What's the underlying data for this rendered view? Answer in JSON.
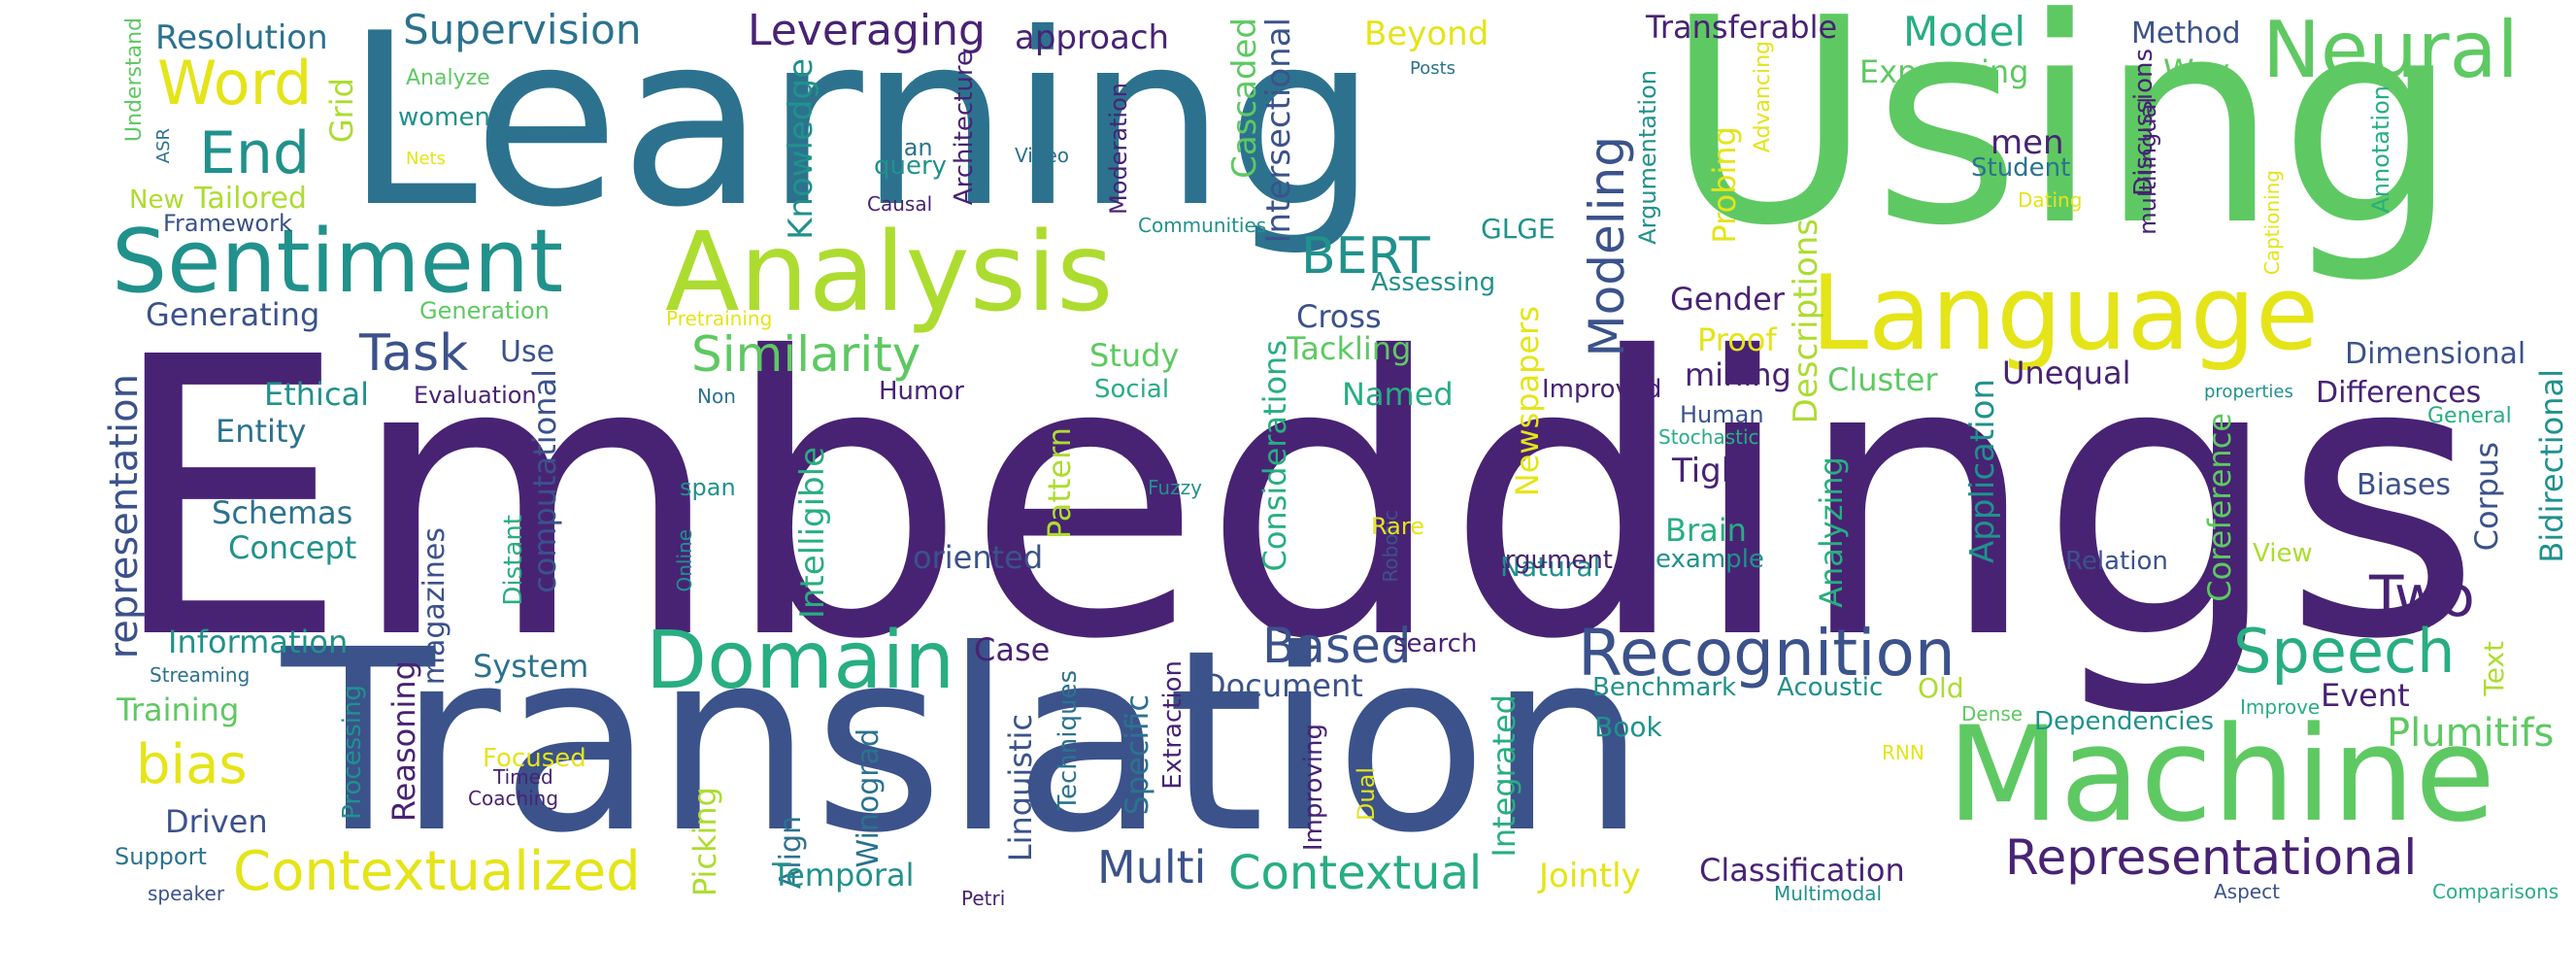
{
  "palette": {
    "dark_purple": "#482374",
    "blue": "#3b528b",
    "teal": "#2c728e",
    "green_teal": "#21918c",
    "sea_green": "#28ae80",
    "green": "#5ec962",
    "lime": "#addc30",
    "yellow": "#e5e419",
    "background": "#ffffff"
  },
  "words": [
    {
      "id": "w0",
      "text": "Embeddings",
      "color": "#482374"
    },
    {
      "id": "w1",
      "text": "Learning",
      "color": "#2c728e"
    },
    {
      "id": "w2",
      "text": "Using",
      "color": "#5ec962"
    },
    {
      "id": "w3",
      "text": "Translation",
      "color": "#3b528b"
    },
    {
      "id": "w4",
      "text": "Machine",
      "color": "#5ec962"
    },
    {
      "id": "w5",
      "text": "Analysis",
      "color": "#addc30"
    },
    {
      "id": "w6",
      "text": "Language",
      "color": "#e5e419"
    },
    {
      "id": "w7",
      "text": "Sentiment",
      "color": "#21918c"
    },
    {
      "id": "w8",
      "text": "Neural",
      "color": "#5ec962"
    },
    {
      "id": "w9",
      "text": "Domain",
      "color": "#28ae80"
    },
    {
      "id": "w10",
      "text": "Recognition",
      "color": "#3b528b"
    },
    {
      "id": "w11",
      "text": "Representational",
      "color": "#482374"
    },
    {
      "id": "w12",
      "text": "Speech",
      "color": "#28ae80"
    },
    {
      "id": "w13",
      "text": "Contextualized",
      "color": "#e5e419"
    },
    {
      "id": "w14",
      "text": "Contextual",
      "color": "#28ae80"
    },
    {
      "id": "w15",
      "text": "Word",
      "color": "#e5e419"
    },
    {
      "id": "w16",
      "text": "End",
      "color": "#21918c"
    },
    {
      "id": "w17",
      "text": "Similarity",
      "color": "#5ec962"
    },
    {
      "id": "w18",
      "text": "Based",
      "color": "#3b528b"
    },
    {
      "id": "w19",
      "text": "BERT",
      "color": "#21918c"
    },
    {
      "id": "w20",
      "text": "Two",
      "color": "#482374"
    },
    {
      "id": "w21",
      "text": "bias",
      "color": "#e5e419"
    },
    {
      "id": "w22",
      "text": "Task",
      "color": "#3b528b"
    },
    {
      "id": "w23",
      "text": "Multi",
      "color": "#3b528b"
    },
    {
      "id": "w24",
      "text": "Supervision",
      "color": "#2c728e"
    },
    {
      "id": "w25",
      "text": "Leveraging",
      "color": "#482374"
    },
    {
      "id": "w26",
      "text": "Model",
      "color": "#28ae80"
    },
    {
      "id": "w27",
      "text": "Plumitifs",
      "color": "#5ec962"
    },
    {
      "id": "w28",
      "text": "Modeling",
      "color": "#3b528b"
    },
    {
      "id": "w29",
      "text": "representation",
      "color": "#3b528b"
    },
    {
      "id": "w30",
      "text": "Resolution",
      "color": "#2c728e"
    },
    {
      "id": "w31",
      "text": "Beyond",
      "color": "#e5e419"
    },
    {
      "id": "w32",
      "text": "Transferable",
      "color": "#482374"
    },
    {
      "id": "w33",
      "text": "Method",
      "color": "#3b528b"
    },
    {
      "id": "w34",
      "text": "approach",
      "color": "#482374"
    },
    {
      "id": "w35",
      "text": "Expressing",
      "color": "#5ec962"
    },
    {
      "id": "w36",
      "text": "Way",
      "color": "#5ec962"
    },
    {
      "id": "w37",
      "text": "Grid",
      "color": "#addc30"
    },
    {
      "id": "w38",
      "text": "Analyze",
      "color": "#5ec962"
    },
    {
      "id": "w39",
      "text": "women",
      "color": "#21918c"
    },
    {
      "id": "w40",
      "text": "Nets",
      "color": "#e5e419"
    },
    {
      "id": "w41",
      "text": "Understand",
      "color": "#5ec962"
    },
    {
      "id": "w42",
      "text": "ASR",
      "color": "#2c728e"
    },
    {
      "id": "w43",
      "text": "New",
      "color": "#addc30"
    },
    {
      "id": "w44",
      "text": "Tailored",
      "color": "#addc30"
    },
    {
      "id": "w45",
      "text": "Framework",
      "color": "#3b528b"
    },
    {
      "id": "w46",
      "text": "Generating",
      "color": "#3b528b"
    },
    {
      "id": "w47",
      "text": "Generation",
      "color": "#5ec962"
    },
    {
      "id": "w48",
      "text": "Pretraining",
      "color": "#e5e419"
    },
    {
      "id": "w49",
      "text": "Knowledge",
      "color": "#21918c"
    },
    {
      "id": "w50",
      "text": "Architecture",
      "color": "#482374"
    },
    {
      "id": "w51",
      "text": "query",
      "color": "#21918c"
    },
    {
      "id": "w52",
      "text": "Man",
      "color": "#2c728e"
    },
    {
      "id": "w53",
      "text": "Causal",
      "color": "#482374"
    },
    {
      "id": "w54",
      "text": "Video",
      "color": "#2c728e"
    },
    {
      "id": "w55",
      "text": "Moderation",
      "color": "#482374"
    },
    {
      "id": "w56",
      "text": "Cascaded",
      "color": "#5ec962"
    },
    {
      "id": "w57",
      "text": "Intersectional",
      "color": "#3b528b"
    },
    {
      "id": "w58",
      "text": "Communities",
      "color": "#21918c"
    },
    {
      "id": "w59",
      "text": "GLGE",
      "color": "#21918c"
    },
    {
      "id": "w60",
      "text": "Posts",
      "color": "#2c728e"
    },
    {
      "id": "w61",
      "text": "Argumentation",
      "color": "#21918c"
    },
    {
      "id": "w62",
      "text": "Probing",
      "color": "#e5e419"
    },
    {
      "id": "w63",
      "text": "Advancing",
      "color": "#e5e419"
    },
    {
      "id": "w64",
      "text": "men",
      "color": "#482374"
    },
    {
      "id": "w65",
      "text": "Student",
      "color": "#2c728e"
    },
    {
      "id": "w66",
      "text": "Dating",
      "color": "#e5e419"
    },
    {
      "id": "w67",
      "text": "Discussions",
      "color": "#482374"
    },
    {
      "id": "w68",
      "text": "multilingual",
      "color": "#482374"
    },
    {
      "id": "w69",
      "text": "Captioning",
      "color": "#e5e419"
    },
    {
      "id": "w70",
      "text": "Annotation",
      "color": "#28ae80"
    },
    {
      "id": "w71",
      "text": "Descriptions",
      "color": "#addc30"
    },
    {
      "id": "w72",
      "text": "Gender",
      "color": "#482374"
    },
    {
      "id": "w73",
      "text": "Proof",
      "color": "#e5e419"
    },
    {
      "id": "w74",
      "text": "mining",
      "color": "#482374"
    },
    {
      "id": "w75",
      "text": "Cluster",
      "color": "#5ec962"
    },
    {
      "id": "w76",
      "text": "Unequal",
      "color": "#482374"
    },
    {
      "id": "w77",
      "text": "Dimensional",
      "color": "#3b528b"
    },
    {
      "id": "w78",
      "text": "Differences",
      "color": "#482374"
    },
    {
      "id": "w79",
      "text": "General",
      "color": "#28ae80"
    },
    {
      "id": "w80",
      "text": "Bidirectional",
      "color": "#21918c"
    },
    {
      "id": "w81",
      "text": "properties",
      "color": "#21918c"
    },
    {
      "id": "w82",
      "text": "Use",
      "color": "#3b528b"
    },
    {
      "id": "w83",
      "text": "Study",
      "color": "#5ec962"
    },
    {
      "id": "w84",
      "text": "Cross",
      "color": "#3b528b"
    },
    {
      "id": "w85",
      "text": "Tackling",
      "color": "#5ec962"
    },
    {
      "id": "w86",
      "text": "Assessing",
      "color": "#21918c"
    },
    {
      "id": "w87",
      "text": "Named",
      "color": "#28ae80"
    },
    {
      "id": "w88",
      "text": "Social",
      "color": "#28ae80"
    },
    {
      "id": "w89",
      "text": "Pattern",
      "color": "#addc30"
    },
    {
      "id": "w90",
      "text": "Humor",
      "color": "#482374"
    },
    {
      "id": "w91",
      "text": "Non",
      "color": "#2c728e"
    },
    {
      "id": "w92",
      "text": "Evaluation",
      "color": "#482374"
    },
    {
      "id": "w93",
      "text": "Ethical",
      "color": "#21918c"
    },
    {
      "id": "w94",
      "text": "Entity",
      "color": "#2c728e"
    },
    {
      "id": "w95",
      "text": "Schemas",
      "color": "#2c728e"
    },
    {
      "id": "w96",
      "text": "Concept",
      "color": "#21918c"
    },
    {
      "id": "w97",
      "text": "Information",
      "color": "#21918c"
    },
    {
      "id": "w98",
      "text": "Streaming",
      "color": "#2c728e"
    },
    {
      "id": "w99",
      "text": "Training",
      "color": "#5ec962"
    },
    {
      "id": "w100",
      "text": "Driven",
      "color": "#3b528b"
    },
    {
      "id": "w101",
      "text": "Support",
      "color": "#2c728e"
    },
    {
      "id": "w102",
      "text": "speaker",
      "color": "#3b528b"
    },
    {
      "id": "w103",
      "text": "magazines",
      "color": "#3b528b"
    },
    {
      "id": "w104",
      "text": "computational",
      "color": "#3b528b"
    },
    {
      "id": "w105",
      "text": "System",
      "color": "#2c728e"
    },
    {
      "id": "w106",
      "text": "Distant",
      "color": "#28ae80"
    },
    {
      "id": "w107",
      "text": "span",
      "color": "#21918c"
    },
    {
      "id": "w108",
      "text": "Online",
      "color": "#21918c"
    },
    {
      "id": "w109",
      "text": "Fuzzy",
      "color": "#21918c"
    },
    {
      "id": "w110",
      "text": "Intelligible",
      "color": "#28ae80"
    },
    {
      "id": "w111",
      "text": "oriented",
      "color": "#3b528b"
    },
    {
      "id": "w112",
      "text": "Robotic",
      "color": "#3b528b"
    },
    {
      "id": "w113",
      "text": "Rare",
      "color": "#e5e419"
    },
    {
      "id": "w114",
      "text": "Considerations",
      "color": "#28ae80"
    },
    {
      "id": "w115",
      "text": "Newspapers",
      "color": "#e5e419"
    },
    {
      "id": "w116",
      "text": "Improved",
      "color": "#482374"
    },
    {
      "id": "w117",
      "text": "Natural",
      "color": "#21918c"
    },
    {
      "id": "w118",
      "text": "Argument",
      "color": "#482374"
    },
    {
      "id": "w119",
      "text": "Human",
      "color": "#3b528b"
    },
    {
      "id": "w120",
      "text": "Stochastic",
      "color": "#28ae80"
    },
    {
      "id": "w121",
      "text": "Tight",
      "color": "#482374"
    },
    {
      "id": "w122",
      "text": "Brain",
      "color": "#28ae80"
    },
    {
      "id": "w123",
      "text": "example",
      "color": "#21918c"
    },
    {
      "id": "w124",
      "text": "Analyzing",
      "color": "#28ae80"
    },
    {
      "id": "w125",
      "text": "Application",
      "color": "#21918c"
    },
    {
      "id": "w126",
      "text": "Coreference",
      "color": "#5ec962"
    },
    {
      "id": "w127",
      "text": "Corpus",
      "color": "#3b528b"
    },
    {
      "id": "w128",
      "text": "Biases",
      "color": "#3b528b"
    },
    {
      "id": "w129",
      "text": "Event",
      "color": "#482374"
    },
    {
      "id": "w130",
      "text": "View",
      "color": "#addc30"
    },
    {
      "id": "w131",
      "text": "Relation",
      "color": "#3b528b"
    },
    {
      "id": "w132",
      "text": "Text",
      "color": "#addc30"
    },
    {
      "id": "w133",
      "text": "Improve",
      "color": "#28ae80"
    },
    {
      "id": "w134",
      "text": "Case",
      "color": "#482374"
    },
    {
      "id": "w135",
      "text": "Reasoning",
      "color": "#482374"
    },
    {
      "id": "w136",
      "text": "Processing",
      "color": "#21918c"
    },
    {
      "id": "w137",
      "text": "Focused",
      "color": "#e5e419"
    },
    {
      "id": "w138",
      "text": "Timed",
      "color": "#482374"
    },
    {
      "id": "w139",
      "text": "Coaching",
      "color": "#482374"
    },
    {
      "id": "w140",
      "text": "Winograd",
      "color": "#2c728e"
    },
    {
      "id": "w141",
      "text": "Align",
      "color": "#2c728e"
    },
    {
      "id": "w142",
      "text": "Picking",
      "color": "#addc30"
    },
    {
      "id": "w143",
      "text": "Temporal",
      "color": "#21918c"
    },
    {
      "id": "w144",
      "text": "Linguistic",
      "color": "#3b528b"
    },
    {
      "id": "w145",
      "text": "Techniques",
      "color": "#2c728e"
    },
    {
      "id": "w146",
      "text": "Specific",
      "color": "#2c728e"
    },
    {
      "id": "w147",
      "text": "Extraction",
      "color": "#482374"
    },
    {
      "id": "w148",
      "text": "Improving",
      "color": "#482374"
    },
    {
      "id": "w149",
      "text": "Dual",
      "color": "#e5e419"
    },
    {
      "id": "w150",
      "text": "Petri",
      "color": "#482374"
    },
    {
      "id": "w151",
      "text": "Document",
      "color": "#3b528b"
    },
    {
      "id": "w152",
      "text": "search",
      "color": "#482374"
    },
    {
      "id": "w153",
      "text": "Integrated",
      "color": "#28ae80"
    },
    {
      "id": "w154",
      "text": "Benchmark",
      "color": "#21918c"
    },
    {
      "id": "w155",
      "text": "Acoustic",
      "color": "#21918c"
    },
    {
      "id": "w156",
      "text": "Old",
      "color": "#addc30"
    },
    {
      "id": "w157",
      "text": "Book",
      "color": "#21918c"
    },
    {
      "id": "w158",
      "text": "Dense",
      "color": "#5ec962"
    },
    {
      "id": "w159",
      "text": "Dependencies",
      "color": "#21918c"
    },
    {
      "id": "w160",
      "text": "RNN",
      "color": "#e5e419"
    },
    {
      "id": "w161",
      "text": "Jointly",
      "color": "#e5e419"
    },
    {
      "id": "w162",
      "text": "Classification",
      "color": "#482374"
    },
    {
      "id": "w163",
      "text": "Multimodal",
      "color": "#21918c"
    },
    {
      "id": "w164",
      "text": "Aspect",
      "color": "#3b528b"
    },
    {
      "id": "w165",
      "text": "Comparisons",
      "color": "#28ae80"
    }
  ]
}
